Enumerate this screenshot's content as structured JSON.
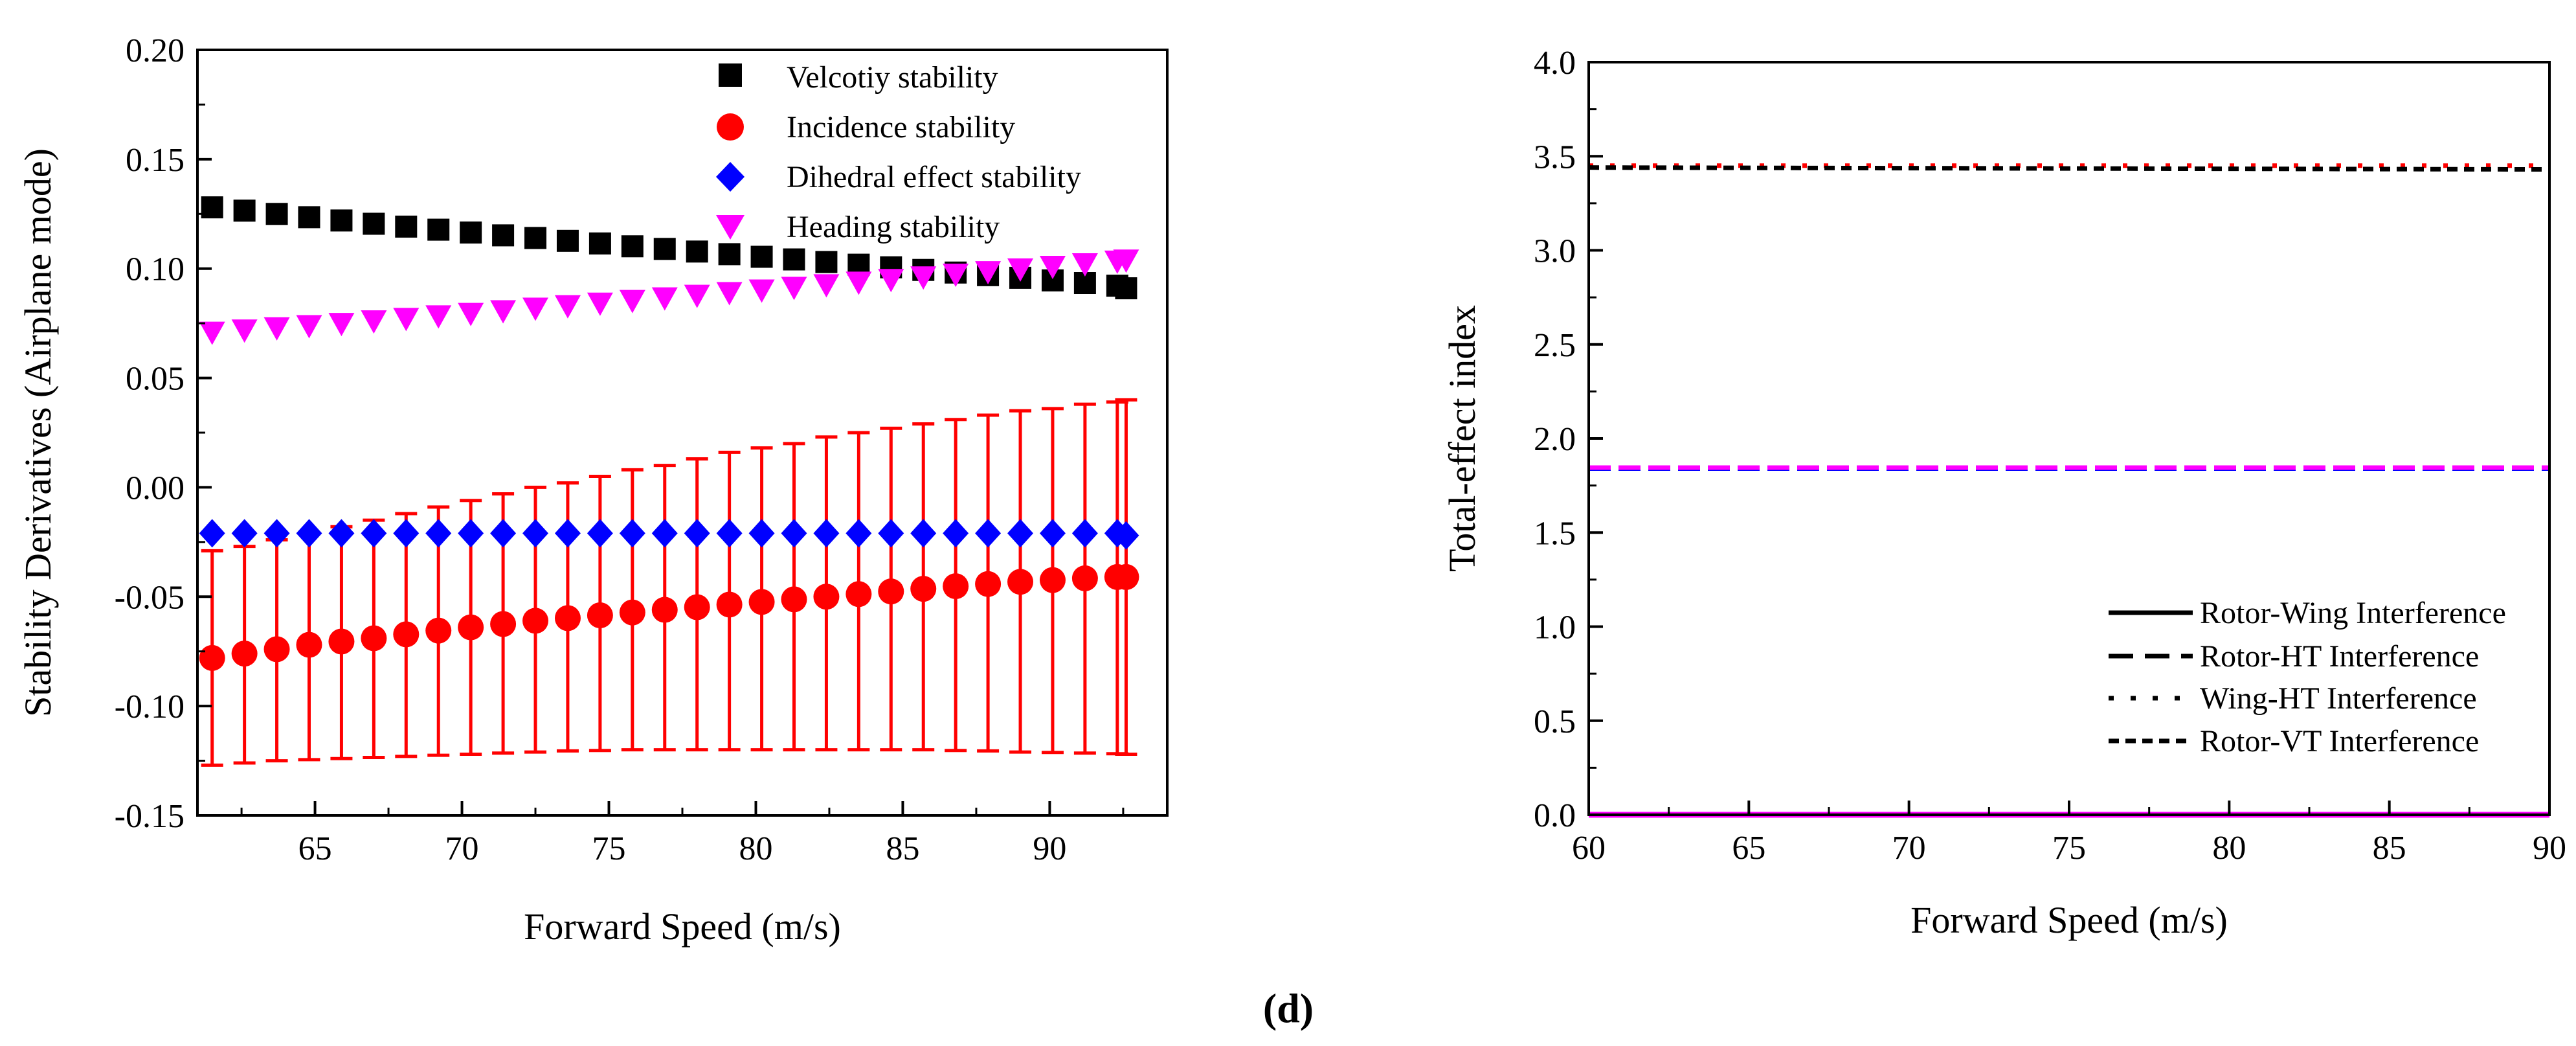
{
  "panel_label": "(d)",
  "chart_data": [
    {
      "type": "scatter",
      "xlabel": "Forward Speed (m/s)",
      "ylabel": "Stability Derivatives (Airplane mode)",
      "xlim": [
        61,
        94
      ],
      "ylim": [
        -0.15,
        0.2
      ],
      "xticks": [
        "65",
        "70",
        "75",
        "80",
        "85",
        "90"
      ],
      "yticks": [
        "-0.15",
        "-0.10",
        "-0.05",
        "0.00",
        "0.05",
        "0.10",
        "0.15",
        "0.20"
      ],
      "legend_position": "top-right",
      "x": [
        61.5,
        62.6,
        63.7,
        64.8,
        65.9,
        67.0,
        68.1,
        69.2,
        70.3,
        71.4,
        72.5,
        73.6,
        74.7,
        75.8,
        76.9,
        78.0,
        79.1,
        80.2,
        81.3,
        82.4,
        83.5,
        84.6,
        85.7,
        86.8,
        87.9,
        89.0,
        90.1,
        91.2,
        92.3,
        92.6
      ],
      "series": [
        {
          "name": "Velcotiy stability",
          "marker": "square",
          "color": "#000000",
          "values": [
            0.128,
            0.1265,
            0.125,
            0.1235,
            0.122,
            0.1205,
            0.1192,
            0.1178,
            0.1165,
            0.1152,
            0.114,
            0.1127,
            0.1115,
            0.1102,
            0.109,
            0.1078,
            0.1066,
            0.1054,
            0.1042,
            0.103,
            0.1018,
            0.1006,
            0.0994,
            0.0982,
            0.097,
            0.0958,
            0.0946,
            0.0934,
            0.0922,
            0.091
          ]
        },
        {
          "name": "Incidence stability",
          "marker": "circle",
          "color": "#ff0000",
          "values": [
            -0.078,
            -0.076,
            -0.074,
            -0.072,
            -0.0705,
            -0.069,
            -0.0672,
            -0.0655,
            -0.064,
            -0.0625,
            -0.061,
            -0.0598,
            -0.0585,
            -0.0572,
            -0.056,
            -0.0548,
            -0.0536,
            -0.0524,
            -0.0512,
            -0.05,
            -0.0488,
            -0.0476,
            -0.0464,
            -0.0452,
            -0.0442,
            -0.0432,
            -0.0424,
            -0.0416,
            -0.041,
            -0.041
          ],
          "error_upper": [
            -0.029,
            -0.027,
            -0.024,
            -0.021,
            -0.018,
            -0.015,
            -0.012,
            -0.009,
            -0.006,
            -0.003,
            0.0,
            0.002,
            0.005,
            0.008,
            0.01,
            0.013,
            0.016,
            0.018,
            0.02,
            0.023,
            0.025,
            0.027,
            0.029,
            0.031,
            0.033,
            0.035,
            0.036,
            0.038,
            0.039,
            0.04
          ],
          "error_lower": [
            -0.127,
            -0.126,
            -0.125,
            -0.1245,
            -0.124,
            -0.1235,
            -0.123,
            -0.1225,
            -0.122,
            -0.1215,
            -0.121,
            -0.1205,
            -0.1203,
            -0.12,
            -0.12,
            -0.12,
            -0.12,
            -0.12,
            -0.12,
            -0.12,
            -0.12,
            -0.12,
            -0.12,
            -0.1203,
            -0.1205,
            -0.121,
            -0.1212,
            -0.1215,
            -0.1218,
            -0.122
          ]
        },
        {
          "name": "Dihedral effect stability",
          "marker": "diamond",
          "color": "#0000ff",
          "values": [
            -0.021,
            -0.021,
            -0.021,
            -0.021,
            -0.021,
            -0.021,
            -0.021,
            -0.021,
            -0.021,
            -0.021,
            -0.021,
            -0.021,
            -0.021,
            -0.021,
            -0.021,
            -0.021,
            -0.021,
            -0.021,
            -0.021,
            -0.021,
            -0.021,
            -0.021,
            -0.021,
            -0.021,
            -0.021,
            -0.021,
            -0.021,
            -0.021,
            -0.021,
            -0.022
          ]
        },
        {
          "name": "Heading stability",
          "marker": "triangle-down",
          "color": "#ff00ff",
          "values": [
            0.071,
            0.072,
            0.073,
            0.074,
            0.075,
            0.0762,
            0.0773,
            0.0785,
            0.0796,
            0.0808,
            0.082,
            0.0831,
            0.0843,
            0.0855,
            0.0867,
            0.0879,
            0.0891,
            0.0903,
            0.0915,
            0.0927,
            0.0939,
            0.0951,
            0.0963,
            0.0975,
            0.0987,
            0.0999,
            0.1011,
            0.1023,
            0.1035,
            0.104
          ]
        }
      ]
    },
    {
      "type": "line",
      "xlabel": "Forward Speed (m/s)",
      "ylabel": "Total-effect index",
      "xlim": [
        60,
        90
      ],
      "ylim": [
        0,
        4.0
      ],
      "xticks": [
        "60",
        "65",
        "70",
        "75",
        "80",
        "85",
        "90"
      ],
      "yticks": [
        "0.0",
        "0.5",
        "1.0",
        "1.5",
        "2.0",
        "2.5",
        "3.0",
        "3.5",
        "4.0"
      ],
      "legend_position": "bottom-right",
      "legend": [
        {
          "name": "Rotor-Wing Interference",
          "style": "solid"
        },
        {
          "name": "Rotor-HT Interference",
          "style": "dashed"
        },
        {
          "name": "Wing-HT Interference",
          "style": "dotted"
        },
        {
          "name": "Rotor-VT Interference",
          "style": "short-dashed"
        }
      ],
      "series": [
        {
          "name": "Rotor-Wing Interference",
          "style": "solid",
          "color": "#ff00ff",
          "x": [
            60,
            90
          ],
          "y": [
            0.0,
            0.0
          ]
        },
        {
          "name": "Rotor-HT Interference",
          "style": "dashed",
          "color": "#0000ff",
          "x": [
            60,
            90
          ],
          "y": [
            1.84,
            1.84
          ]
        },
        {
          "name": "Rotor-HT Interference",
          "style": "dashed",
          "color": "#ff00ff",
          "x": [
            60,
            90
          ],
          "y": [
            1.845,
            1.845
          ]
        },
        {
          "name": "Wing-HT Interference",
          "style": "dotted",
          "color": "#ff0000",
          "x": [
            60,
            90
          ],
          "y": [
            3.45,
            3.45
          ]
        },
        {
          "name": "Rotor-VT Interference",
          "style": "short-dashed",
          "color": "#000000",
          "x": [
            60,
            90
          ],
          "y": [
            3.44,
            3.43
          ]
        }
      ]
    }
  ]
}
